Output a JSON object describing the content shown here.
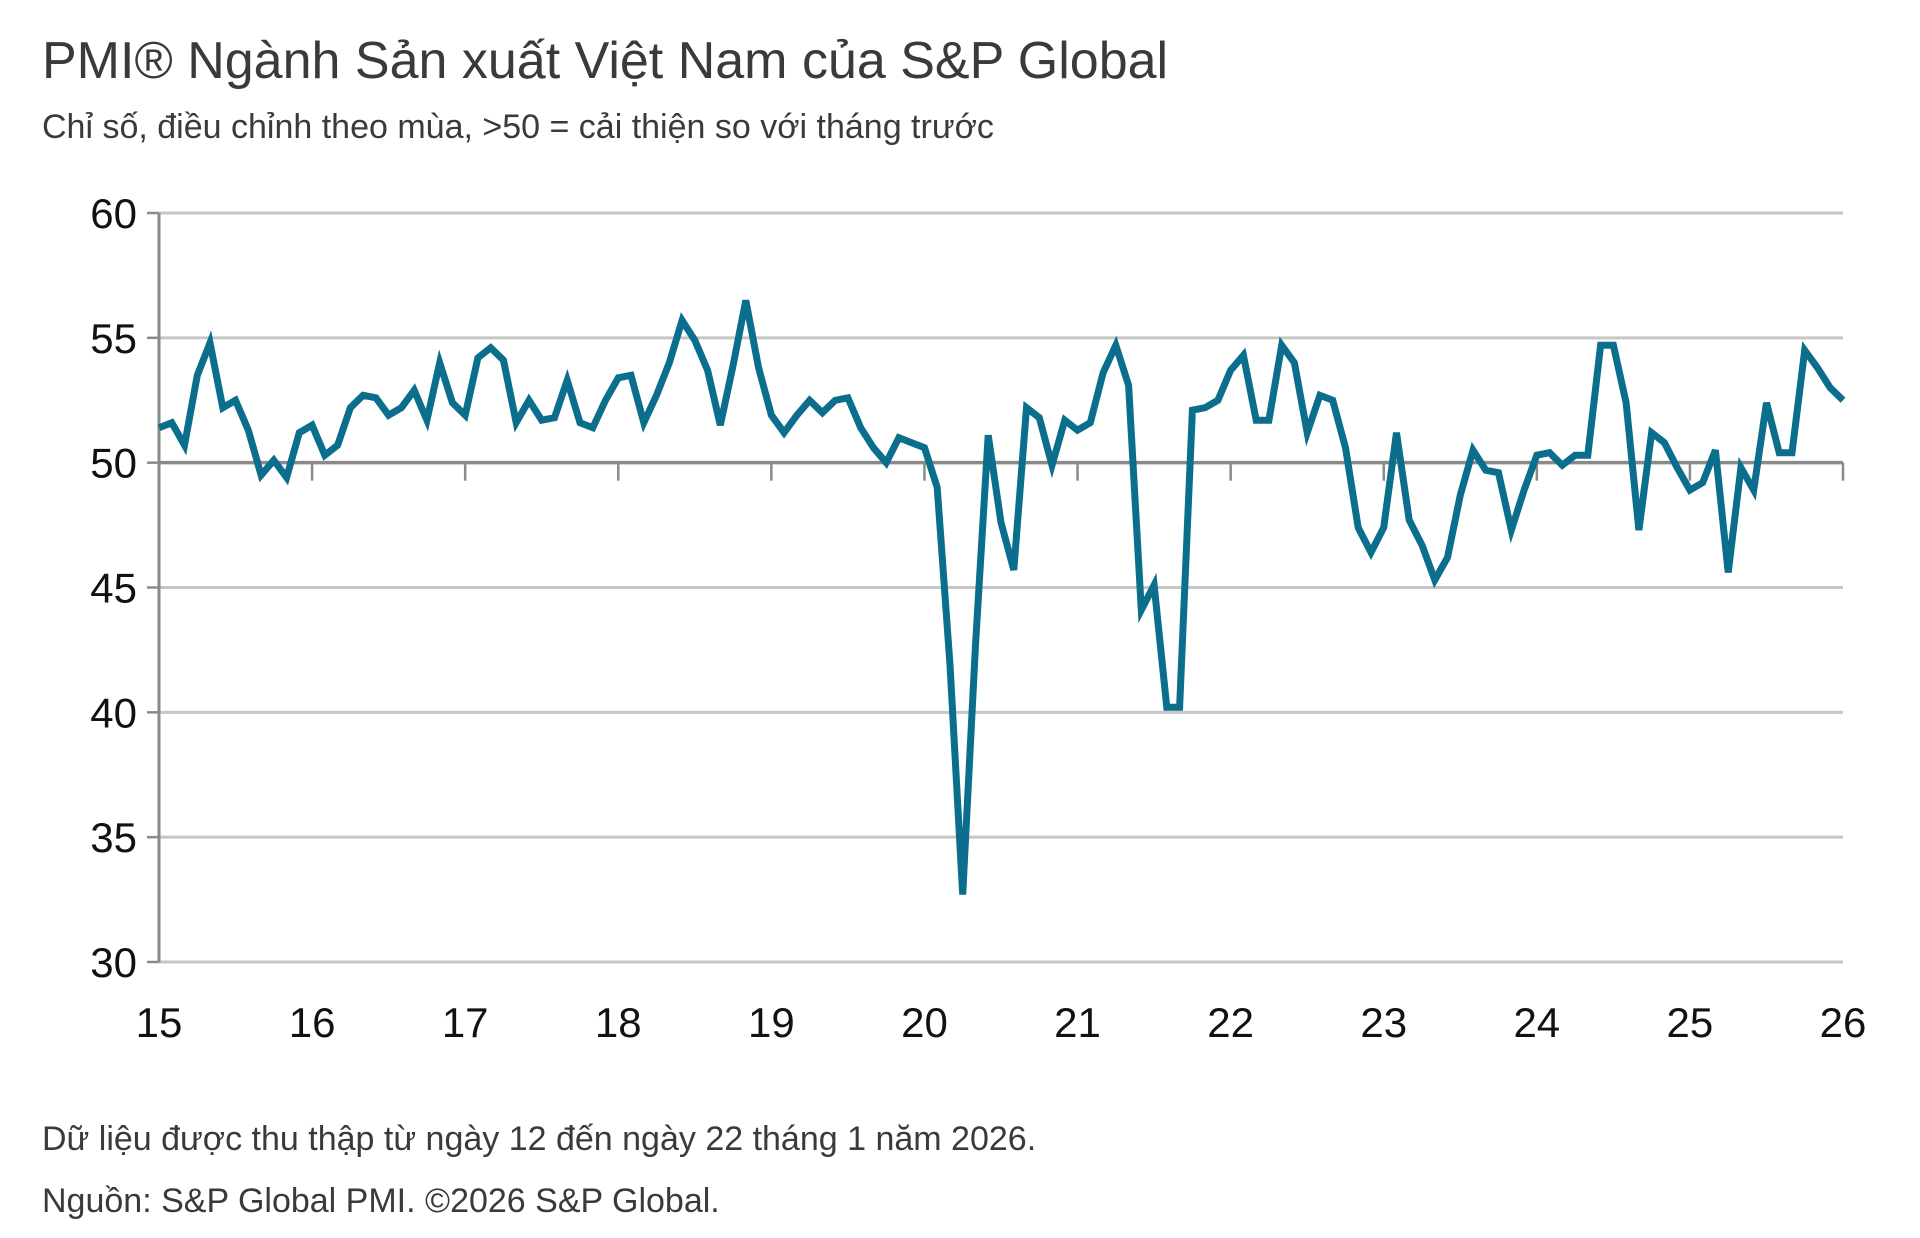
{
  "chart_data": {
    "type": "line",
    "title": "PMI® Ngành Sản xuất Việt Nam của S&P Global",
    "subtitle": "Chỉ số, điều chỉnh theo mùa, >50 = cải thiện so với tháng trước",
    "xlabel": "",
    "ylabel": "",
    "ylim": [
      30,
      60
    ],
    "yticks": [
      "60",
      "55",
      "50",
      "45",
      "40",
      "35",
      "30"
    ],
    "xticks": [
      "15",
      "16",
      "17",
      "18",
      "19",
      "20",
      "21",
      "22",
      "23",
      "24",
      "25",
      "26"
    ],
    "xlim": [
      "2015-01",
      "2026-01"
    ],
    "reference_line": 50,
    "grid": true,
    "line_color": "#0b6e8c",
    "series": [
      {
        "values": [
          [
            "2015-01",
            51.4
          ],
          [
            "2015-02",
            51.6
          ],
          [
            "2015-03",
            50.7
          ],
          [
            "2015-04",
            53.5
          ],
          [
            "2015-05",
            54.8
          ],
          [
            "2015-06",
            52.2
          ],
          [
            "2015-07",
            52.5
          ],
          [
            "2015-08",
            51.3
          ],
          [
            "2015-09",
            49.5
          ],
          [
            "2015-10",
            50.1
          ],
          [
            "2015-11",
            49.4
          ],
          [
            "2015-12",
            51.2
          ],
          [
            "2016-01",
            51.5
          ],
          [
            "2016-02",
            50.3
          ],
          [
            "2016-03",
            50.7
          ],
          [
            "2016-04",
            52.2
          ],
          [
            "2016-05",
            52.7
          ],
          [
            "2016-06",
            52.6
          ],
          [
            "2016-07",
            51.9
          ],
          [
            "2016-08",
            52.2
          ],
          [
            "2016-09",
            52.9
          ],
          [
            "2016-10",
            51.7
          ],
          [
            "2016-11",
            54.0
          ],
          [
            "2016-12",
            52.4
          ],
          [
            "2017-01",
            51.9
          ],
          [
            "2017-02",
            54.2
          ],
          [
            "2017-03",
            54.6
          ],
          [
            "2017-04",
            54.1
          ],
          [
            "2017-05",
            51.6
          ],
          [
            "2017-06",
            52.5
          ],
          [
            "2017-07",
            51.7
          ],
          [
            "2017-08",
            51.8
          ],
          [
            "2017-09",
            53.3
          ],
          [
            "2017-10",
            51.6
          ],
          [
            "2017-11",
            51.4
          ],
          [
            "2017-12",
            52.5
          ],
          [
            "2018-01",
            53.4
          ],
          [
            "2018-02",
            53.5
          ],
          [
            "2018-03",
            51.6
          ],
          [
            "2018-04",
            52.7
          ],
          [
            "2018-05",
            54.0
          ],
          [
            "2018-06",
            55.7
          ],
          [
            "2018-07",
            54.9
          ],
          [
            "2018-08",
            53.7
          ],
          [
            "2018-09",
            51.5
          ],
          [
            "2018-10",
            53.9
          ],
          [
            "2018-11",
            56.5
          ],
          [
            "2018-12",
            53.8
          ],
          [
            "2019-01",
            51.9
          ],
          [
            "2019-02",
            51.2
          ],
          [
            "2019-03",
            51.9
          ],
          [
            "2019-04",
            52.5
          ],
          [
            "2019-05",
            52.0
          ],
          [
            "2019-06",
            52.5
          ],
          [
            "2019-07",
            52.6
          ],
          [
            "2019-08",
            51.4
          ],
          [
            "2019-09",
            50.6
          ],
          [
            "2019-10",
            50.0
          ],
          [
            "2019-11",
            51.0
          ],
          [
            "2019-12",
            50.8
          ],
          [
            "2020-01",
            50.6
          ],
          [
            "2020-02",
            49.0
          ],
          [
            "2020-03",
            41.9
          ],
          [
            "2020-04",
            32.7
          ],
          [
            "2020-05",
            42.7
          ],
          [
            "2020-06",
            51.1
          ],
          [
            "2020-07",
            47.6
          ],
          [
            "2020-08",
            45.7
          ],
          [
            "2020-09",
            52.2
          ],
          [
            "2020-10",
            51.8
          ],
          [
            "2020-11",
            49.9
          ],
          [
            "2020-12",
            51.7
          ],
          [
            "2021-01",
            51.3
          ],
          [
            "2021-02",
            51.6
          ],
          [
            "2021-03",
            53.6
          ],
          [
            "2021-04",
            54.7
          ],
          [
            "2021-05",
            53.1
          ],
          [
            "2021-06",
            44.1
          ],
          [
            "2021-07",
            45.1
          ],
          [
            "2021-08",
            40.2
          ],
          [
            "2021-09",
            40.2
          ],
          [
            "2021-10",
            52.1
          ],
          [
            "2021-11",
            52.2
          ],
          [
            "2021-12",
            52.5
          ],
          [
            "2022-01",
            53.7
          ],
          [
            "2022-02",
            54.3
          ],
          [
            "2022-03",
            51.7
          ],
          [
            "2022-04",
            51.7
          ],
          [
            "2022-05",
            54.7
          ],
          [
            "2022-06",
            54.0
          ],
          [
            "2022-07",
            51.2
          ],
          [
            "2022-08",
            52.7
          ],
          [
            "2022-09",
            52.5
          ],
          [
            "2022-10",
            50.6
          ],
          [
            "2022-11",
            47.4
          ],
          [
            "2022-12",
            46.4
          ],
          [
            "2023-01",
            47.4
          ],
          [
            "2023-02",
            51.2
          ],
          [
            "2023-03",
            47.7
          ],
          [
            "2023-04",
            46.7
          ],
          [
            "2023-05",
            45.3
          ],
          [
            "2023-06",
            46.2
          ],
          [
            "2023-07",
            48.7
          ],
          [
            "2023-08",
            50.5
          ],
          [
            "2023-09",
            49.7
          ],
          [
            "2023-10",
            49.6
          ],
          [
            "2023-11",
            47.3
          ],
          [
            "2023-12",
            48.9
          ],
          [
            "2024-01",
            50.3
          ],
          [
            "2024-02",
            50.4
          ],
          [
            "2024-03",
            49.9
          ],
          [
            "2024-04",
            50.3
          ],
          [
            "2024-05",
            50.3
          ],
          [
            "2024-06",
            54.7
          ],
          [
            "2024-07",
            54.7
          ],
          [
            "2024-08",
            52.4
          ],
          [
            "2024-09",
            47.3
          ],
          [
            "2024-10",
            51.2
          ],
          [
            "2024-11",
            50.8
          ],
          [
            "2024-12",
            49.8
          ],
          [
            "2025-01",
            48.9
          ],
          [
            "2025-02",
            49.2
          ],
          [
            "2025-03",
            50.5
          ],
          [
            "2025-04",
            45.6
          ],
          [
            "2025-05",
            49.8
          ],
          [
            "2025-06",
            48.9
          ],
          [
            "2025-07",
            52.4
          ],
          [
            "2025-08",
            50.4
          ],
          [
            "2025-09",
            50.4
          ],
          [
            "2025-10",
            54.5
          ],
          [
            "2025-11",
            53.8
          ],
          [
            "2025-12",
            53.0
          ],
          [
            "2026-01",
            52.5
          ]
        ]
      }
    ],
    "footnote": "Dữ liệu được thu thập từ ngày 12 đến ngày 22 tháng 1 năm 2026.",
    "source": "Nguồn: S&P Global PMI. ©2026 S&P Global."
  }
}
